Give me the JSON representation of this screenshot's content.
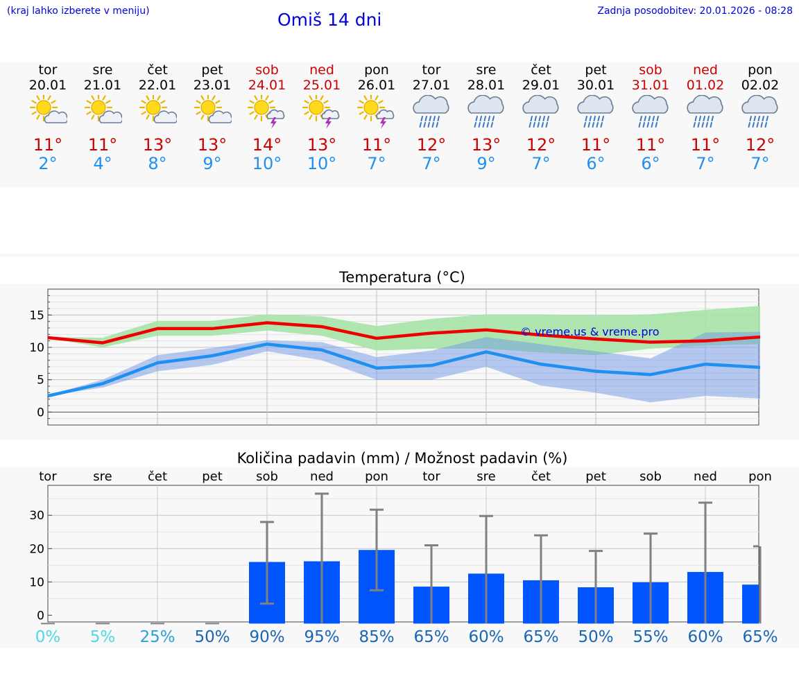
{
  "header": {
    "note": "(kraj lahko izberete v meniju)",
    "title": "Omiš 14 dni",
    "updated": "Zadnja posodobitev: 20.01.2026 - 08:28"
  },
  "days": [
    {
      "name": "tor",
      "date": "20.01",
      "weekend": false,
      "icon": "sun-cloud-icon",
      "max": "11°",
      "min": "2°"
    },
    {
      "name": "sre",
      "date": "21.01",
      "weekend": false,
      "icon": "sun-cloud-icon",
      "max": "11°",
      "min": "4°"
    },
    {
      "name": "čet",
      "date": "22.01",
      "weekend": false,
      "icon": "sun-cloud-icon",
      "max": "13°",
      "min": "8°"
    },
    {
      "name": "pet",
      "date": "23.01",
      "weekend": false,
      "icon": "sun-cloud-icon",
      "max": "13°",
      "min": "9°"
    },
    {
      "name": "sob",
      "date": "24.01",
      "weekend": true,
      "icon": "sun-thunder-icon",
      "max": "14°",
      "min": "10°"
    },
    {
      "name": "ned",
      "date": "25.01",
      "weekend": true,
      "icon": "sun-thunder-icon",
      "max": "13°",
      "min": "10°"
    },
    {
      "name": "pon",
      "date": "26.01",
      "weekend": false,
      "icon": "sun-thunder-icon",
      "max": "11°",
      "min": "7°"
    },
    {
      "name": "tor",
      "date": "27.01",
      "weekend": false,
      "icon": "rain-cloud-icon",
      "max": "12°",
      "min": "7°"
    },
    {
      "name": "sre",
      "date": "28.01",
      "weekend": false,
      "icon": "rain-cloud-icon",
      "max": "13°",
      "min": "9°"
    },
    {
      "name": "čet",
      "date": "29.01",
      "weekend": false,
      "icon": "rain-cloud-icon",
      "max": "12°",
      "min": "7°"
    },
    {
      "name": "pet",
      "date": "30.01",
      "weekend": false,
      "icon": "rain-cloud-icon",
      "max": "11°",
      "min": "6°"
    },
    {
      "name": "sob",
      "date": "31.01",
      "weekend": true,
      "icon": "rain-cloud-icon",
      "max": "11°",
      "min": "6°"
    },
    {
      "name": "ned",
      "date": "01.02",
      "weekend": true,
      "icon": "rain-cloud-icon",
      "max": "11°",
      "min": "7°"
    },
    {
      "name": "pon",
      "date": "02.02",
      "weekend": false,
      "icon": "rain-cloud-icon",
      "max": "12°",
      "min": "7°"
    }
  ],
  "colors": {
    "max_line": "#ee0000",
    "max_band": "#a6e3a6",
    "min_line": "#1f8ff0",
    "min_band": "#aac4f2",
    "bar": "#0055ff",
    "error": "#808080",
    "title": "#0000dd",
    "weekend": "#cc0000"
  },
  "chart_data": [
    {
      "type": "line",
      "title": "Temperatura (°C)",
      "watermark": "© vreme.us & vreme.pro",
      "ylim": [
        -2,
        19
      ],
      "yticks": [
        0,
        5,
        10,
        15
      ],
      "grid": true,
      "series": [
        {
          "values": [
            11.5,
            10.7,
            12.9,
            12.9,
            13.8,
            13.2,
            11.4,
            12.2,
            12.7,
            11.9,
            11.3,
            10.8,
            11,
            11.6
          ],
          "band_low": [
            11.4,
            10.0,
            11.8,
            11.8,
            12.6,
            11.8,
            9.5,
            9.8,
            9.8,
            9.2,
            8.8,
            9.8,
            10.3,
            10.5
          ],
          "band_high": [
            11.6,
            11.5,
            14.1,
            14.1,
            15.1,
            14.8,
            13.3,
            14.4,
            15.1,
            15.1,
            14.9,
            15.1,
            15.8,
            16.4
          ]
        },
        {
          "values": [
            2.5,
            4.4,
            7.6,
            8.7,
            10.5,
            9.6,
            6.8,
            7.2,
            9.3,
            7.4,
            6.3,
            5.8,
            7.4,
            6.9
          ],
          "band_low": [
            2.5,
            3.8,
            6.3,
            7.3,
            9.4,
            8.0,
            5.0,
            5.0,
            7.0,
            4.1,
            3.0,
            1.5,
            2.5,
            2.1
          ],
          "band_high": [
            2.6,
            5.0,
            8.8,
            9.9,
            11.1,
            10.8,
            8.5,
            9.5,
            11.6,
            10.5,
            9.4,
            8.3,
            12.3,
            12.4
          ]
        }
      ]
    },
    {
      "type": "bar",
      "title": "Količina padavin (mm) / Možnost padavin (%)",
      "categories": [
        "tor",
        "sre",
        "čet",
        "pet",
        "sob",
        "ned",
        "pon",
        "tor",
        "sre",
        "čet",
        "pet",
        "sob",
        "ned",
        "pon"
      ],
      "ylim": [
        -2,
        39
      ],
      "yticks": [
        0,
        10,
        20,
        30
      ],
      "grid": true,
      "values": [
        0,
        0,
        0,
        0,
        16,
        16.2,
        19.6,
        8.6,
        12.5,
        10.5,
        8.4,
        9.9,
        13,
        9.2
      ],
      "error_low": [
        0,
        0,
        0,
        0,
        3.5,
        null,
        7.5,
        0,
        0,
        0,
        0,
        0,
        0,
        0
      ],
      "error_high": [
        0,
        0,
        0,
        0,
        28,
        36.5,
        31.7,
        21,
        29.8,
        24,
        19.3,
        24.5,
        33.8,
        20.7
      ],
      "probabilities": [
        "0%",
        "5%",
        "25%",
        "50%",
        "90%",
        "95%",
        "85%",
        "65%",
        "60%",
        "65%",
        "50%",
        "55%",
        "60%",
        "65%"
      ],
      "probability_colors": [
        "#4fd8e6",
        "#4fd8e6",
        "#2aa0d8",
        "#1966b4",
        "#1966b4",
        "#1966b4",
        "#1966b4",
        "#1966b4",
        "#1966b4",
        "#1966b4",
        "#1966b4",
        "#1966b4",
        "#1966b4",
        "#1966b4"
      ]
    }
  ]
}
